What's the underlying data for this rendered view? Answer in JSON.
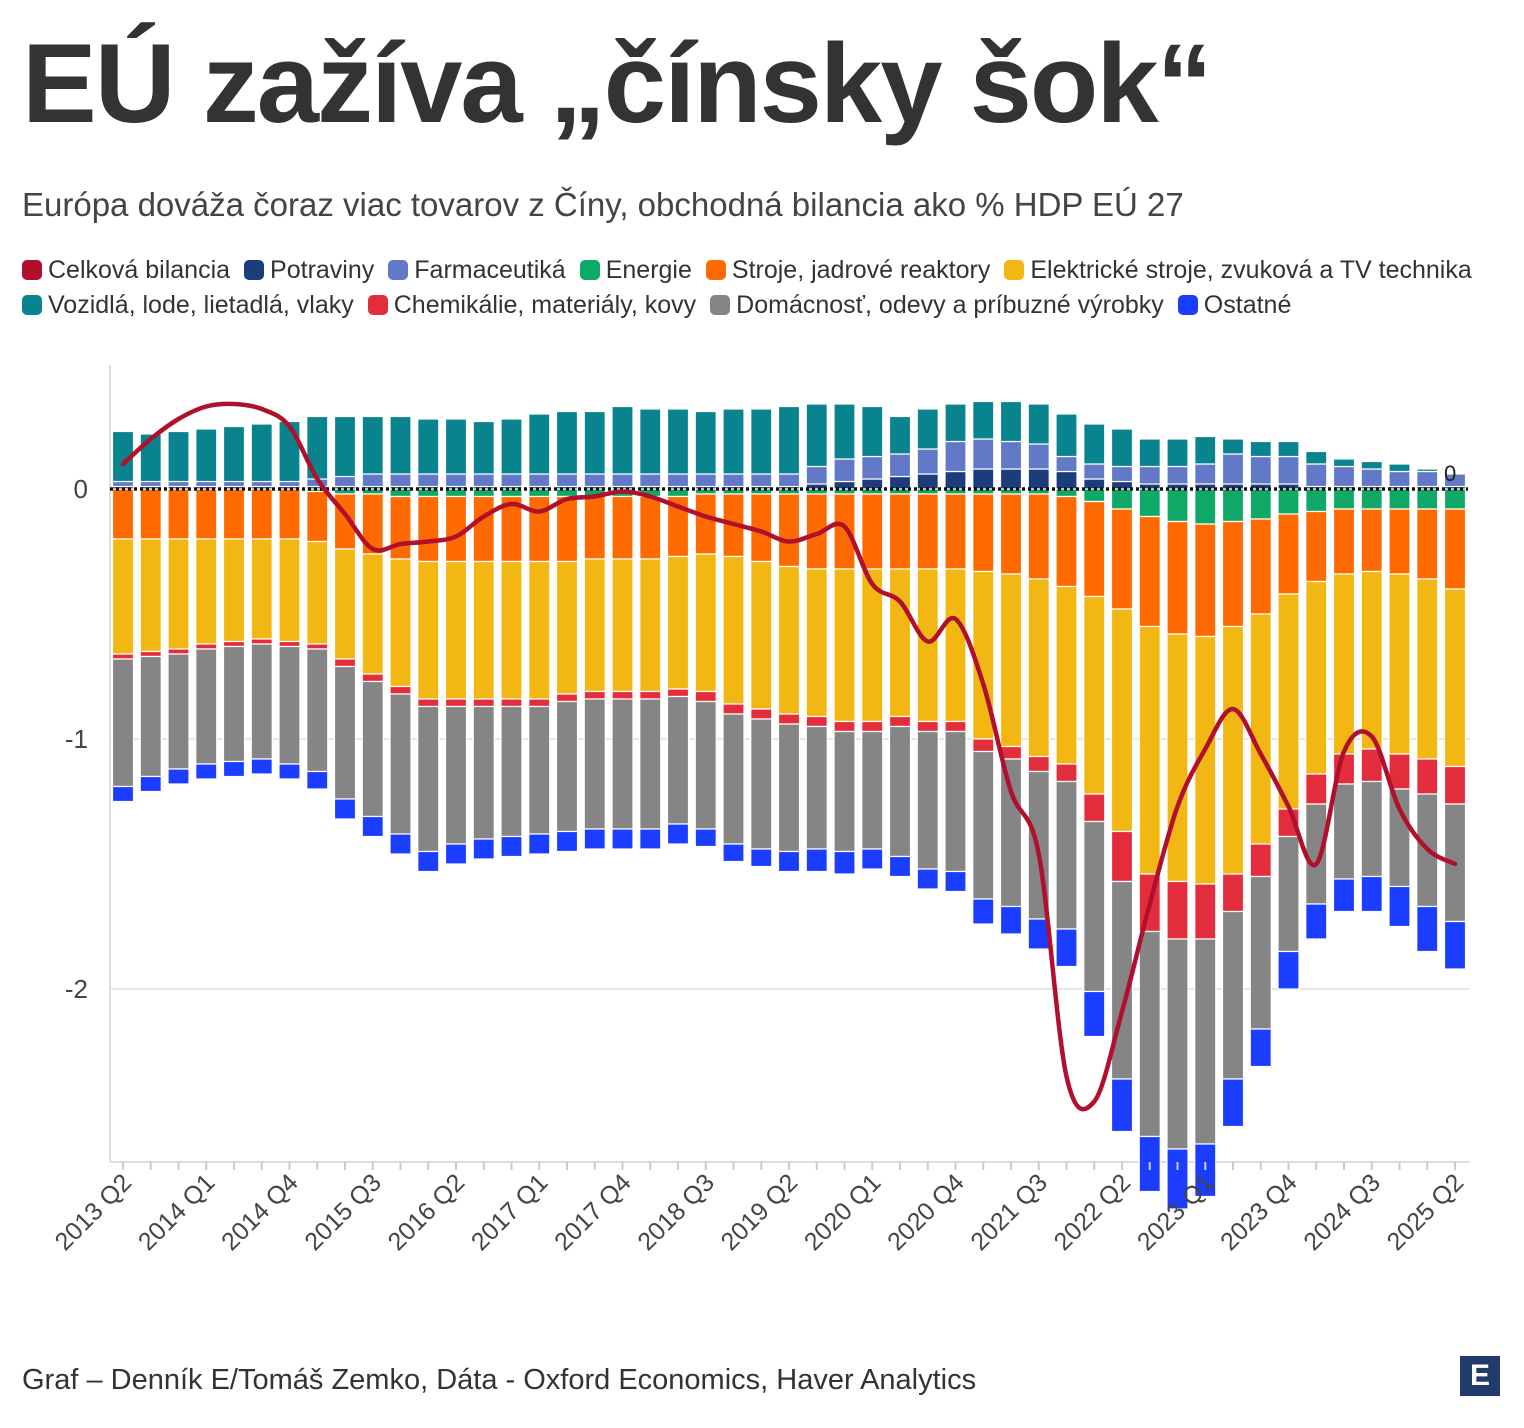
{
  "header": {
    "title": "EÚ zažíva „čínsky šok“",
    "subtitle": "Európa dováža čoraz viac tovarov z Číny, obchodná bilancia ako % HDP EÚ 27"
  },
  "footer": {
    "source": "Graf – Denník E/Tomáš Zemko, Dáta - Oxford Economics, Haver Analytics",
    "logo": "E"
  },
  "colors": {
    "total": "#b0102c",
    "potraviny": "#1d3c7c",
    "farmaceutika": "#6279c8",
    "energie": "#10a866",
    "stroje": "#ff6a00",
    "elektricke": "#f2b712",
    "vozidla": "#09848f",
    "chemikalie": "#e42d3c",
    "domacnost": "#858585",
    "ostatne": "#1a3dff"
  },
  "chart_data": {
    "type": "bar",
    "stacked": true,
    "title": "EÚ zažíva „čínsky šok“",
    "subtitle": "Európa dováža čoraz viac tovarov z Číny, obchodná bilancia ako % HDP EÚ 27",
    "xlabel": "",
    "ylabel": "",
    "ylim": [
      -2.7,
      0.5
    ],
    "y_ticks": [
      0,
      -1,
      -2
    ],
    "y_tick_labels": [
      "0",
      "-1",
      "-2"
    ],
    "zero_line_label": "0",
    "x_tick_labels": [
      "2013 Q2",
      "2014 Q1",
      "2014 Q4",
      "2015 Q3",
      "2016 Q2",
      "2017 Q1",
      "2017 Q4",
      "2018 Q3",
      "2019 Q2",
      "2020 Q1",
      "2020 Q4",
      "2021 Q3",
      "2022 Q2",
      "2023 Q1",
      "2023 Q4",
      "2024 Q3",
      "2025 Q2"
    ],
    "x_tick_every": 3,
    "categories": [
      "2013 Q2",
      "2013 Q3",
      "2013 Q4",
      "2014 Q1",
      "2014 Q2",
      "2014 Q3",
      "2014 Q4",
      "2015 Q1",
      "2015 Q2",
      "2015 Q3",
      "2015 Q4",
      "2016 Q1",
      "2016 Q2",
      "2016 Q3",
      "2016 Q4",
      "2017 Q1",
      "2017 Q2",
      "2017 Q3",
      "2017 Q4",
      "2018 Q1",
      "2018 Q2",
      "2018 Q3",
      "2018 Q4",
      "2019 Q1",
      "2019 Q2",
      "2019 Q3",
      "2019 Q4",
      "2020 Q1",
      "2020 Q2",
      "2020 Q3",
      "2020 Q4",
      "2021 Q1",
      "2021 Q2",
      "2021 Q3",
      "2021 Q4",
      "2022 Q1",
      "2022 Q2",
      "2022 Q3",
      "2022 Q4",
      "2023 Q1",
      "2023 Q2",
      "2023 Q3",
      "2023 Q4",
      "2024 Q1",
      "2024 Q2",
      "2024 Q3",
      "2024 Q4",
      "2025 Q1",
      "2025 Q2"
    ],
    "legend": [
      {
        "key": "total",
        "label": "Celková bilancia"
      },
      {
        "key": "potraviny",
        "label": "Potraviny"
      },
      {
        "key": "farmaceutika",
        "label": "Farmaceutiká"
      },
      {
        "key": "energie",
        "label": "Energie"
      },
      {
        "key": "stroje",
        "label": "Stroje, jadrové reaktory"
      },
      {
        "key": "elektricke",
        "label": "Elektrické stroje, zvuková a TV technika"
      },
      {
        "key": "vozidla",
        "label": "Vozidlá, lode, lietadlá, vlaky"
      },
      {
        "key": "chemikalie",
        "label": "Chemikálie, materiály, kovy"
      },
      {
        "key": "domacnost",
        "label": "Domácnosť, odevy a príbuzné výrobky"
      },
      {
        "key": "ostatne",
        "label": "Ostatné"
      }
    ],
    "series": [
      {
        "key": "potraviny",
        "name": "Potraviny",
        "values": [
          0.01,
          0.01,
          0.01,
          0.01,
          0.01,
          0.01,
          0.01,
          0.01,
          0.01,
          0.01,
          0.01,
          0.01,
          0.01,
          0.01,
          0.01,
          0.01,
          0.01,
          0.01,
          0.01,
          0.01,
          0.01,
          0.01,
          0.01,
          0.01,
          0.01,
          0.02,
          0.03,
          0.04,
          0.05,
          0.06,
          0.07,
          0.08,
          0.08,
          0.08,
          0.07,
          0.04,
          0.03,
          0.02,
          0.02,
          0.02,
          0.02,
          0.02,
          0.02,
          0.01,
          0.01,
          0.01,
          0.01,
          0.01,
          0.01
        ]
      },
      {
        "key": "farmaceutika",
        "name": "Farmaceutiká",
        "values": [
          0.02,
          0.02,
          0.02,
          0.02,
          0.02,
          0.02,
          0.02,
          0.03,
          0.04,
          0.05,
          0.05,
          0.05,
          0.05,
          0.05,
          0.05,
          0.05,
          0.05,
          0.05,
          0.05,
          0.05,
          0.05,
          0.05,
          0.05,
          0.05,
          0.05,
          0.07,
          0.09,
          0.09,
          0.09,
          0.1,
          0.12,
          0.12,
          0.11,
          0.1,
          0.06,
          0.06,
          0.06,
          0.07,
          0.07,
          0.08,
          0.12,
          0.11,
          0.11,
          0.09,
          0.08,
          0.07,
          0.06,
          0.06,
          0.05
        ]
      },
      {
        "key": "vozidla",
        "name": "Vozidlá, lode, lietadlá, vlaky",
        "values": [
          0.2,
          0.19,
          0.2,
          0.21,
          0.22,
          0.23,
          0.24,
          0.25,
          0.24,
          0.23,
          0.23,
          0.22,
          0.22,
          0.21,
          0.22,
          0.24,
          0.25,
          0.25,
          0.27,
          0.26,
          0.26,
          0.25,
          0.26,
          0.26,
          0.27,
          0.25,
          0.22,
          0.2,
          0.15,
          0.16,
          0.15,
          0.15,
          0.16,
          0.16,
          0.17,
          0.16,
          0.15,
          0.11,
          0.11,
          0.11,
          0.06,
          0.06,
          0.06,
          0.05,
          0.03,
          0.03,
          0.03,
          0.01,
          0.0
        ]
      },
      {
        "key": "energie",
        "name": "Energie",
        "values": [
          0,
          0,
          0,
          0,
          0,
          0,
          0,
          -0.01,
          -0.02,
          -0.02,
          -0.03,
          -0.03,
          -0.03,
          -0.03,
          -0.03,
          -0.03,
          -0.03,
          -0.03,
          -0.03,
          -0.03,
          -0.03,
          -0.02,
          -0.02,
          -0.02,
          -0.02,
          -0.02,
          -0.02,
          -0.02,
          -0.02,
          -0.02,
          -0.02,
          -0.02,
          -0.02,
          -0.02,
          -0.03,
          -0.05,
          -0.08,
          -0.11,
          -0.13,
          -0.14,
          -0.13,
          -0.12,
          -0.1,
          -0.09,
          -0.08,
          -0.08,
          -0.08,
          -0.08,
          -0.08
        ]
      },
      {
        "key": "stroje",
        "name": "Stroje, jadrové reaktory",
        "values": [
          -0.2,
          -0.2,
          -0.2,
          -0.2,
          -0.2,
          -0.2,
          -0.2,
          -0.2,
          -0.22,
          -0.24,
          -0.25,
          -0.26,
          -0.26,
          -0.26,
          -0.26,
          -0.26,
          -0.26,
          -0.25,
          -0.25,
          -0.25,
          -0.24,
          -0.24,
          -0.25,
          -0.27,
          -0.29,
          -0.3,
          -0.3,
          -0.3,
          -0.3,
          -0.3,
          -0.3,
          -0.31,
          -0.32,
          -0.34,
          -0.36,
          -0.38,
          -0.4,
          -0.44,
          -0.45,
          -0.45,
          -0.42,
          -0.38,
          -0.32,
          -0.28,
          -0.26,
          -0.25,
          -0.26,
          -0.28,
          -0.32
        ]
      },
      {
        "key": "elektricke",
        "name": "Elektrické stroje, zvuková a TV technika",
        "values": [
          -0.46,
          -0.45,
          -0.44,
          -0.42,
          -0.41,
          -0.4,
          -0.41,
          -0.41,
          -0.44,
          -0.48,
          -0.51,
          -0.55,
          -0.55,
          -0.55,
          -0.55,
          -0.55,
          -0.53,
          -0.53,
          -0.53,
          -0.53,
          -0.53,
          -0.55,
          -0.59,
          -0.59,
          -0.59,
          -0.59,
          -0.61,
          -0.61,
          -0.59,
          -0.61,
          -0.61,
          -0.67,
          -0.69,
          -0.71,
          -0.71,
          -0.79,
          -0.89,
          -0.99,
          -0.99,
          -0.99,
          -0.99,
          -0.92,
          -0.86,
          -0.77,
          -0.72,
          -0.71,
          -0.72,
          -0.72,
          -0.71
        ]
      },
      {
        "key": "chemikalie",
        "name": "Chemikálie, materiály, kovy",
        "values": [
          -0.02,
          -0.02,
          -0.02,
          -0.02,
          -0.02,
          -0.02,
          -0.02,
          -0.02,
          -0.03,
          -0.03,
          -0.03,
          -0.03,
          -0.03,
          -0.03,
          -0.03,
          -0.03,
          -0.03,
          -0.03,
          -0.03,
          -0.03,
          -0.03,
          -0.04,
          -0.04,
          -0.04,
          -0.04,
          -0.04,
          -0.04,
          -0.04,
          -0.04,
          -0.04,
          -0.04,
          -0.05,
          -0.05,
          -0.06,
          -0.07,
          -0.11,
          -0.2,
          -0.23,
          -0.23,
          -0.22,
          -0.15,
          -0.13,
          -0.11,
          -0.12,
          -0.12,
          -0.13,
          -0.14,
          -0.14,
          -0.15
        ]
      },
      {
        "key": "domacnost",
        "name": "Domácnosť, odevy a príbuzné výrobky",
        "values": [
          -0.51,
          -0.48,
          -0.46,
          -0.46,
          -0.46,
          -0.46,
          -0.47,
          -0.49,
          -0.53,
          -0.54,
          -0.56,
          -0.58,
          -0.55,
          -0.53,
          -0.52,
          -0.51,
          -0.52,
          -0.52,
          -0.52,
          -0.52,
          -0.51,
          -0.51,
          -0.52,
          -0.52,
          -0.51,
          -0.49,
          -0.48,
          -0.47,
          -0.52,
          -0.55,
          -0.56,
          -0.59,
          -0.59,
          -0.59,
          -0.59,
          -0.68,
          -0.79,
          -0.82,
          -0.84,
          -0.82,
          -0.67,
          -0.61,
          -0.46,
          -0.4,
          -0.38,
          -0.38,
          -0.39,
          -0.45,
          -0.47
        ]
      },
      {
        "key": "ostatne",
        "name": "Ostatné",
        "values": [
          -0.06,
          -0.06,
          -0.06,
          -0.06,
          -0.06,
          -0.06,
          -0.06,
          -0.07,
          -0.08,
          -0.08,
          -0.08,
          -0.08,
          -0.08,
          -0.08,
          -0.08,
          -0.08,
          -0.08,
          -0.08,
          -0.08,
          -0.08,
          -0.08,
          -0.07,
          -0.07,
          -0.07,
          -0.08,
          -0.09,
          -0.09,
          -0.08,
          -0.08,
          -0.08,
          -0.08,
          -0.1,
          -0.11,
          -0.12,
          -0.15,
          -0.18,
          -0.21,
          -0.22,
          -0.24,
          -0.21,
          -0.19,
          -0.15,
          -0.15,
          -0.14,
          -0.13,
          -0.14,
          -0.16,
          -0.18,
          -0.19
        ]
      },
      {
        "key": "total",
        "name": "Celková bilancia",
        "type": "line",
        "values": [
          0.1,
          0.2,
          0.28,
          0.33,
          0.34,
          0.32,
          0.25,
          0.04,
          -0.1,
          -0.24,
          -0.22,
          -0.21,
          -0.19,
          -0.11,
          -0.06,
          -0.09,
          -0.04,
          -0.03,
          -0.01,
          -0.03,
          -0.07,
          -0.11,
          -0.14,
          -0.17,
          -0.21,
          -0.18,
          -0.15,
          -0.38,
          -0.45,
          -0.61,
          -0.52,
          -0.78,
          -1.21,
          -1.46,
          -2.35,
          -2.45,
          -2.09,
          -1.66,
          -1.27,
          -1.04,
          -0.88,
          -1.06,
          -1.27,
          -1.5,
          -1.05,
          -0.99,
          -1.28,
          -1.44,
          -1.5
        ]
      }
    ]
  }
}
